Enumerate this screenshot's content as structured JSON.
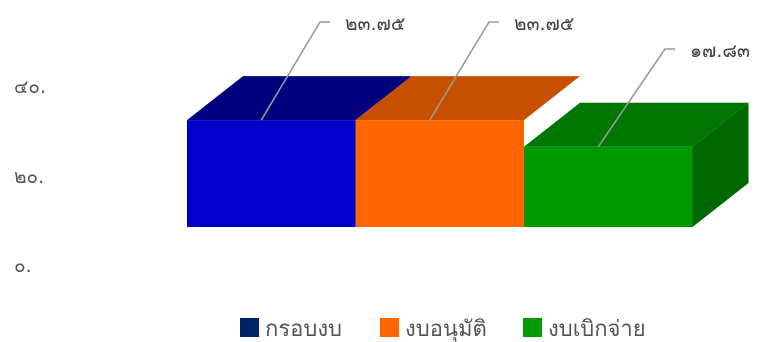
{
  "chart_data": {
    "type": "bar",
    "subtype": "3d-stacked-horizontal-segments",
    "title": "",
    "y_ticks": [
      "๐.",
      "๒๐.",
      "๔๐."
    ],
    "ylim": [
      0,
      50
    ],
    "series": [
      {
        "name": "กรอบงบ",
        "value": 23.75,
        "label": "๒๓.๗๕",
        "color": "#0000CC"
      },
      {
        "name": "งบอนุมัติ",
        "value": 23.75,
        "label": "๒๓.๗๕",
        "color": "#FF6600"
      },
      {
        "name": "งบเบิกจ่าย",
        "value": 17.83,
        "label": "๑๗.๘๓",
        "color": "#009900"
      }
    ],
    "legend": {
      "placement": "bottom",
      "items": [
        {
          "label": "กรอบงบ",
          "color": "#002266"
        },
        {
          "label": "งบอนุมัติ",
          "color": "#FF6600"
        },
        {
          "label": "งบเบิกจ่าย",
          "color": "#009900"
        }
      ]
    },
    "grid": false
  }
}
